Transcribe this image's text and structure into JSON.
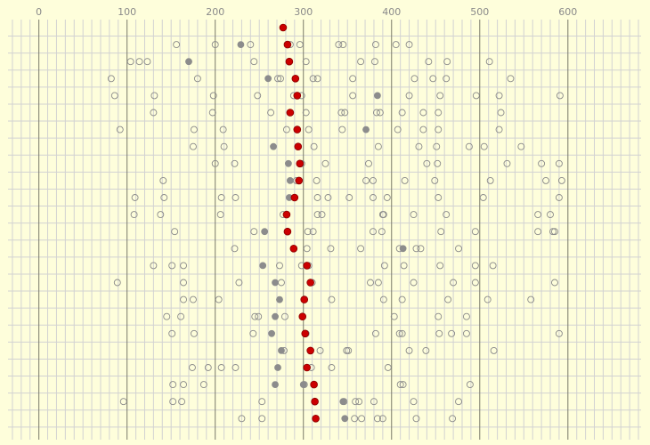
{
  "chart_data": {
    "type": "scatter",
    "title": "",
    "xlabel": "",
    "ylabel": "",
    "xlim": [
      -35,
      683
    ],
    "xticks": [
      0,
      100,
      200,
      300,
      400,
      500,
      600
    ],
    "grid": true,
    "colors": {
      "background": "#fefedb",
      "plot_background": "#fefedb",
      "grid_minor": "#d2d2d2",
      "grid_major": "#7a7a6a",
      "tick_label": "#8a8a8a",
      "open_marker_stroke": "#8a8a8a",
      "filled_marker": "#8c8c8c",
      "highlight_marker": "#cc0000",
      "highlight_stroke": "#8a0000"
    },
    "rows": [
      {
        "open": [],
        "filled": [],
        "highlight": 277
      },
      {
        "open": [
          156,
          200,
          240,
          285,
          296,
          340,
          345,
          382,
          405,
          420
        ],
        "filled": [
          229
        ],
        "highlight": 282
      },
      {
        "open": [
          104,
          114,
          123,
          244,
          303,
          365,
          381,
          442,
          463,
          511
        ],
        "filled": [
          170
        ],
        "highlight": 284
      },
      {
        "open": [
          82,
          180,
          271,
          274,
          311,
          316,
          356,
          426,
          447,
          462,
          535
        ],
        "filled": [
          260
        ],
        "highlight": 291
      },
      {
        "open": [
          86,
          131,
          198,
          248,
          289,
          298,
          356,
          420,
          455,
          496,
          522,
          591
        ],
        "filled": [
          384
        ],
        "highlight": 293
      },
      {
        "open": [
          130,
          197,
          263,
          303,
          343,
          347,
          383,
          387,
          412,
          436,
          453,
          524
        ],
        "filled": [],
        "highlight": 285
      },
      {
        "open": [
          92,
          176,
          209,
          281,
          306,
          344,
          407,
          436,
          453,
          522
        ],
        "filled": [
          371
        ],
        "highlight": 293
      },
      {
        "open": [
          175,
          210,
          294,
          312,
          385,
          431,
          451,
          488,
          505,
          547
        ],
        "filled": [
          266
        ],
        "highlight": 294
      },
      {
        "open": [
          200,
          222,
          298,
          325,
          374,
          440,
          452,
          531,
          570,
          590
        ],
        "filled": [
          283
        ],
        "highlight": 296
      },
      {
        "open": [
          141,
          292,
          315,
          371,
          379,
          415,
          449,
          512,
          575,
          593
        ],
        "filled": [
          285
        ],
        "highlight": 295
      },
      {
        "open": [
          109,
          142,
          207,
          223,
          316,
          328,
          352,
          379,
          395,
          453,
          504,
          590
        ],
        "filled": [
          284
        ],
        "highlight": 290
      },
      {
        "open": [
          108,
          138,
          206,
          277,
          281,
          316,
          321,
          390,
          391,
          425,
          462,
          566,
          580
        ],
        "filled": [],
        "highlight": 281
      },
      {
        "open": [
          154,
          244,
          305,
          311,
          379,
          389,
          456,
          495,
          566,
          583,
          585
        ],
        "filled": [
          256
        ],
        "highlight": 282
      },
      {
        "open": [
          222,
          304,
          331,
          365,
          409,
          428,
          433,
          476
        ],
        "filled": [
          413
        ],
        "highlight": 289
      },
      {
        "open": [
          130,
          151,
          164,
          273,
          298,
          306,
          392,
          414,
          455,
          495,
          515
        ],
        "filled": [
          254
        ],
        "highlight": 304
      },
      {
        "open": [
          89,
          164,
          227,
          275,
          310,
          376,
          385,
          425,
          470,
          495,
          585
        ],
        "filled": [
          268
        ],
        "highlight": 308
      },
      {
        "open": [
          164,
          175,
          204,
          332,
          391,
          412,
          464,
          509,
          558
        ],
        "filled": [
          273
        ],
        "highlight": 301
      },
      {
        "open": [
          145,
          161,
          245,
          249,
          279,
          403,
          453,
          485
        ],
        "filled": [
          268
        ],
        "highlight": 299
      },
      {
        "open": [
          151,
          176,
          243,
          303,
          382,
          409,
          412,
          454,
          468,
          485,
          590
        ],
        "filled": [
          264
        ],
        "highlight": 302
      },
      {
        "open": [
          278,
          319,
          349,
          351,
          420,
          439,
          516
        ],
        "filled": [
          275
        ],
        "highlight": 308
      },
      {
        "open": [
          174,
          192,
          207,
          223,
          309,
          332,
          396
        ],
        "filled": [
          271
        ],
        "highlight": 304
      },
      {
        "open": [
          152,
          164,
          187,
          301,
          410,
          413,
          489
        ],
        "filled": [
          268,
          300
        ],
        "highlight": 312
      },
      {
        "open": [
          96,
          152,
          162,
          253,
          346,
          359,
          363,
          380,
          425,
          476
        ],
        "filled": [
          345
        ],
        "highlight": 313
      },
      {
        "open": [
          230,
          253,
          358,
          366,
          384,
          390,
          428,
          469
        ],
        "filled": [
          347
        ],
        "highlight": 314
      }
    ]
  }
}
